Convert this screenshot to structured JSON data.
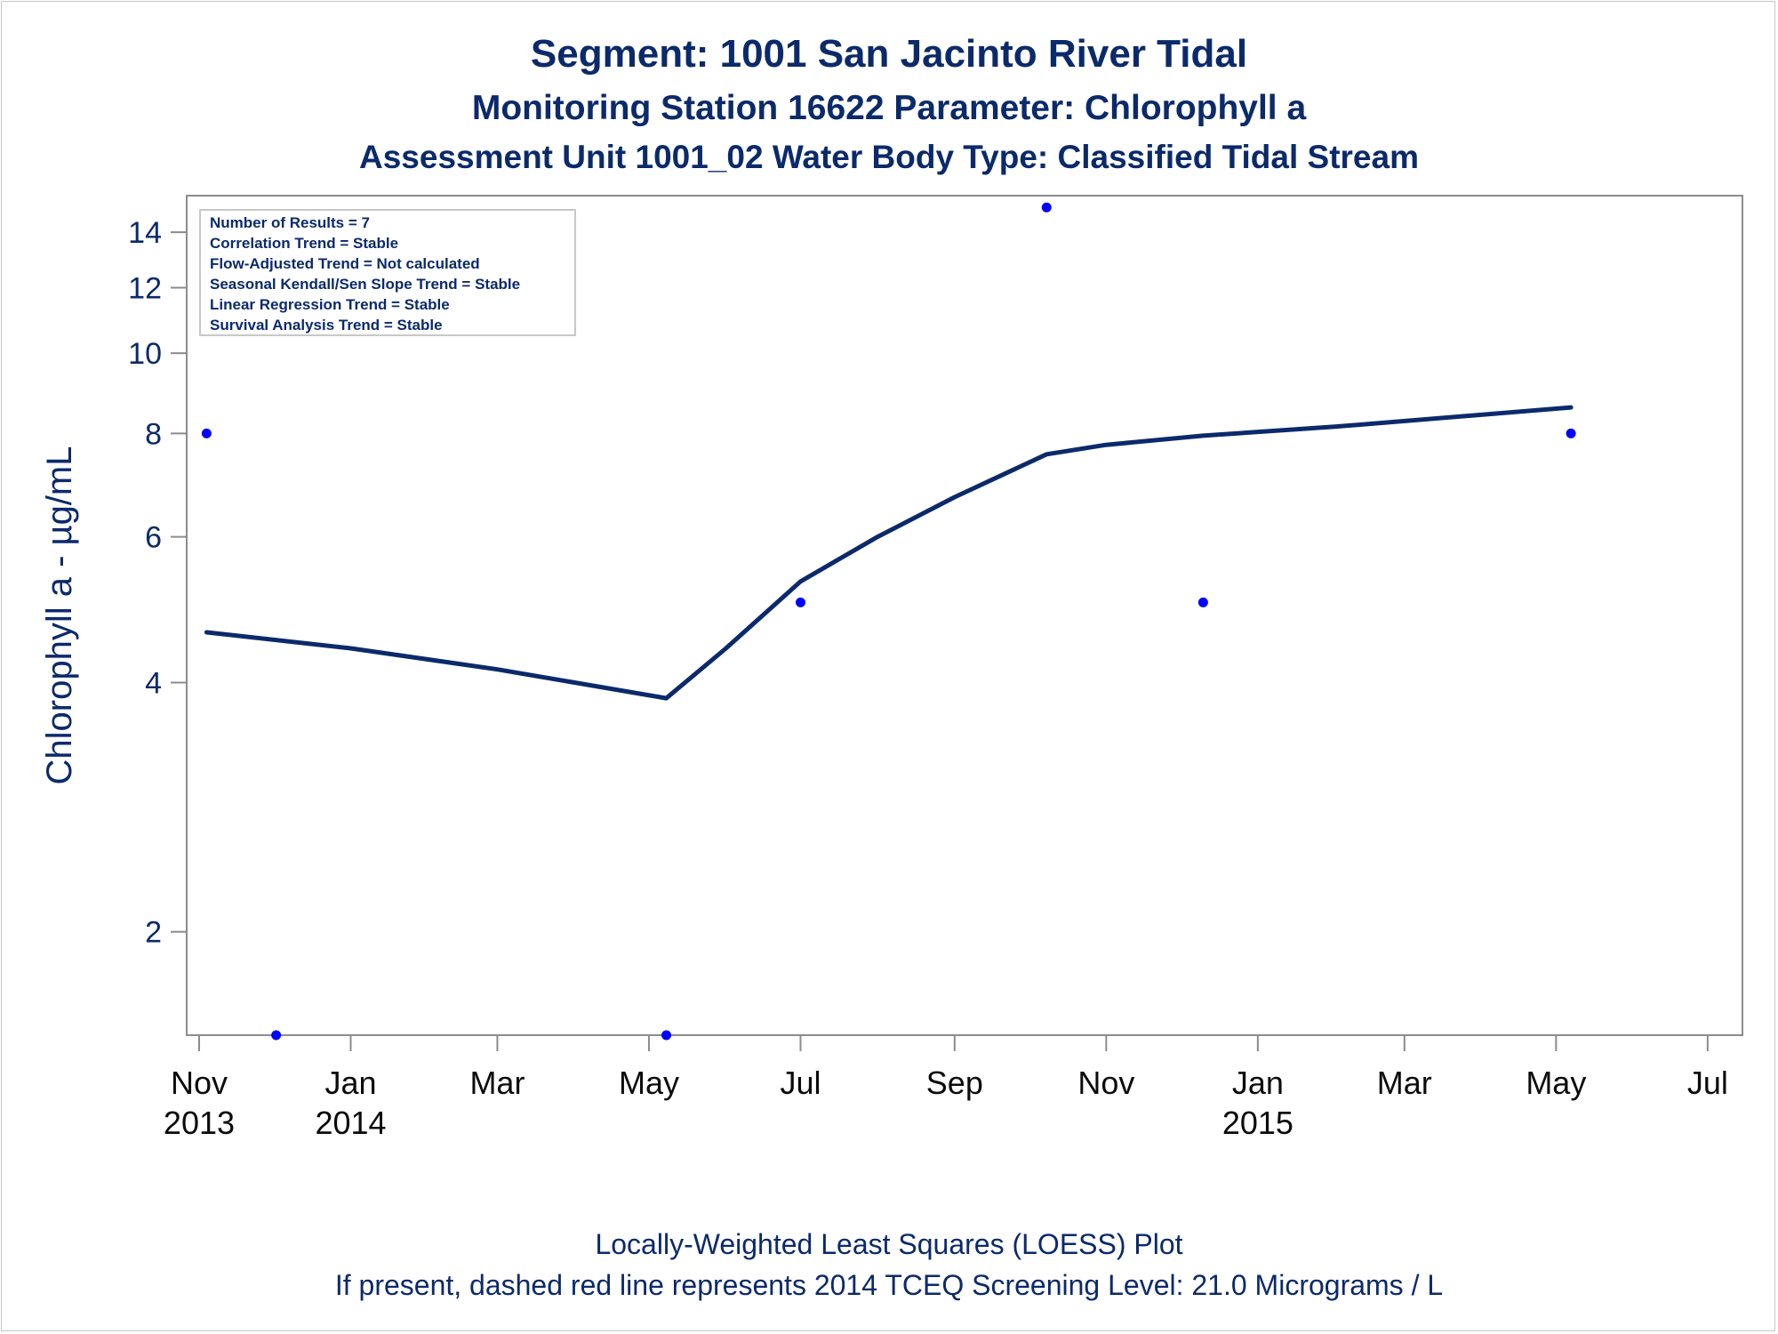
{
  "header": {
    "title": "Segment: 1001  San Jacinto River Tidal",
    "subtitle1": "Monitoring Station 16622 Parameter: Chlorophyll a",
    "subtitle2": "Assessment Unit 1001_02   Water Body Type: Classified Tidal Stream"
  },
  "stats_box": [
    "Number of Results = 7",
    "Correlation Trend = Stable",
    "Flow-Adjusted Trend = Not calculated",
    "Seasonal Kendall/Sen Slope Trend = Stable",
    "Linear Regression Trend = Stable",
    "Survival Analysis Trend = Stable"
  ],
  "footer": {
    "line1": "Locally-Weighted Least Squares (LOESS) Plot",
    "line2": "If present, dashed red line represents 2014 TCEQ Screening Level: 21.0 Micrograms / L"
  },
  "colors": {
    "text": "#0b2a6b",
    "line": "#0b2a6b",
    "points": "#0000ff",
    "axis": "#8c8c8c"
  },
  "chart_data": {
    "type": "scatter",
    "ylabel": "Chlorophyll a -  µg/mL",
    "xlabel": "",
    "y_scale": "log",
    "ylim": [
      1.5,
      15.5
    ],
    "xlim": [
      "2013-10-27",
      "2015-07-15"
    ],
    "y_ticks": [
      2,
      4,
      6,
      8,
      10,
      12,
      14
    ],
    "x_ticks": [
      {
        "date": "2013-11-01",
        "label": [
          "Nov",
          "2013"
        ]
      },
      {
        "date": "2014-01-01",
        "label": [
          "Jan",
          "2014"
        ]
      },
      {
        "date": "2014-03-01",
        "label": [
          "Mar",
          ""
        ]
      },
      {
        "date": "2014-05-01",
        "label": [
          "May",
          ""
        ]
      },
      {
        "date": "2014-07-01",
        "label": [
          "Jul",
          ""
        ]
      },
      {
        "date": "2014-09-01",
        "label": [
          "Sep",
          ""
        ]
      },
      {
        "date": "2014-11-01",
        "label": [
          "Nov",
          ""
        ]
      },
      {
        "date": "2015-01-01",
        "label": [
          "Jan",
          "2015"
        ]
      },
      {
        "date": "2015-03-01",
        "label": [
          "Mar",
          ""
        ]
      },
      {
        "date": "2015-05-01",
        "label": [
          "May",
          ""
        ]
      },
      {
        "date": "2015-07-01",
        "label": [
          "Jul",
          ""
        ]
      }
    ],
    "series": [
      {
        "type": "scatter",
        "points": [
          {
            "x": "2013-11-04",
            "y": 8
          },
          {
            "x": "2013-12-02",
            "y": 1.5
          },
          {
            "x": "2014-05-08",
            "y": 1.5
          },
          {
            "x": "2014-07-01",
            "y": 5
          },
          {
            "x": "2014-10-08",
            "y": 15
          },
          {
            "x": "2014-12-10",
            "y": 5
          },
          {
            "x": "2015-05-07",
            "y": 8
          }
        ]
      },
      {
        "type": "line",
        "points": [
          {
            "x": "2013-11-04",
            "y": 4.6
          },
          {
            "x": "2014-01-01",
            "y": 4.4
          },
          {
            "x": "2014-03-01",
            "y": 4.15
          },
          {
            "x": "2014-05-08",
            "y": 3.83
          },
          {
            "x": "2014-06-01",
            "y": 4.4
          },
          {
            "x": "2014-07-01",
            "y": 5.3
          },
          {
            "x": "2014-08-01",
            "y": 6.0
          },
          {
            "x": "2014-09-01",
            "y": 6.7
          },
          {
            "x": "2014-10-08",
            "y": 7.55
          },
          {
            "x": "2014-11-01",
            "y": 7.75
          },
          {
            "x": "2014-12-10",
            "y": 7.95
          },
          {
            "x": "2015-02-01",
            "y": 8.15
          },
          {
            "x": "2015-05-07",
            "y": 8.6
          }
        ]
      }
    ]
  }
}
